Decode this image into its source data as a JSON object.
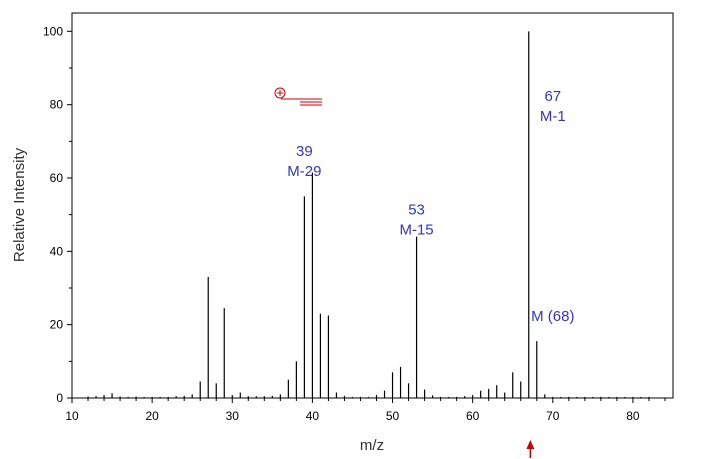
{
  "chart_data": {
    "type": "bar",
    "title": "",
    "xlabel": "m/z",
    "ylabel": "Relative Intensity",
    "xlim": [
      10,
      85
    ],
    "ylim": [
      0,
      105
    ],
    "x_ticks": [
      10,
      20,
      30,
      40,
      50,
      60,
      70,
      80
    ],
    "y_ticks": [
      0,
      20,
      40,
      60,
      80,
      100
    ],
    "grid": false,
    "legend": "none",
    "series": [
      {
        "x": [
          12,
          13,
          14,
          15,
          16,
          17,
          18,
          19,
          20,
          21,
          22,
          23,
          24,
          25,
          26,
          27,
          28,
          29,
          30,
          31,
          32,
          33,
          34,
          35,
          36,
          37,
          38,
          39,
          40,
          41,
          42,
          43,
          44,
          45,
          46,
          47,
          48,
          49,
          50,
          51,
          52,
          53,
          54,
          55,
          56,
          57,
          58,
          59,
          60,
          61,
          62,
          63,
          64,
          65,
          66,
          67,
          68,
          69,
          70,
          71,
          72,
          73,
          74,
          75,
          76,
          77,
          78,
          79,
          80,
          81,
          82
        ],
        "values": [
          0.4,
          0.5,
          0.8,
          1.3,
          0.4,
          0.3,
          0.4,
          0.3,
          0.3,
          0.3,
          0.3,
          0.5,
          0.6,
          1.0,
          4.5,
          33.0,
          4.0,
          24.5,
          0.8,
          1.5,
          0.5,
          0.5,
          0.5,
          0.6,
          1.0,
          5.0,
          10.0,
          55.0,
          61.5,
          23.0,
          22.5,
          1.5,
          0.6,
          0.3,
          0.3,
          0.3,
          0.8,
          2.0,
          7.0,
          8.5,
          4.0,
          44.0,
          2.3,
          0.7,
          0.3,
          0.3,
          0.3,
          0.5,
          0.8,
          2.0,
          2.5,
          3.5,
          1.5,
          7.0,
          4.5,
          100.0,
          15.5,
          1.0,
          0.3,
          0.3,
          0.3,
          0.3,
          0.3,
          0.3,
          0.3,
          0.3,
          0.3,
          0.3,
          0.3,
          0.3,
          0.3
        ]
      }
    ],
    "annotations": [
      {
        "x": 39,
        "y": 66,
        "lines": [
          "39",
          "M-29"
        ]
      },
      {
        "x": 53,
        "y": 50,
        "lines": [
          "53",
          "M-15"
        ]
      },
      {
        "x": 70,
        "y": 81,
        "lines": [
          "67",
          "M-1"
        ]
      },
      {
        "x": 70,
        "y": 21,
        "lines": [
          "M (68)"
        ]
      }
    ],
    "molecular_ion_marker_x": 67.2,
    "colors": {
      "bars": "#000000",
      "annotations": "#3333cc",
      "structure": "#cc0000",
      "marker": "#cc0000"
    }
  }
}
